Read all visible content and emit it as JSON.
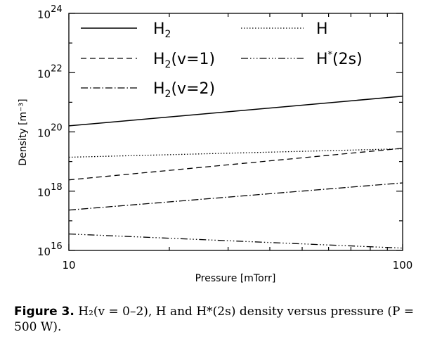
{
  "chart_data": {
    "type": "line",
    "title": "",
    "xlabel": "Pressure [mTorr]",
    "ylabel": "Density [m⁻³]",
    "x_scale": "log",
    "y_scale": "log",
    "xlim": [
      10,
      100
    ],
    "ylim": [
      1e+16,
      1e+24
    ],
    "x_ticks": [
      10,
      100
    ],
    "x_tick_labels": [
      "10",
      "100"
    ],
    "y_ticks": [
      1e+16,
      1e+18,
      1e+20,
      1e+22,
      1e+24
    ],
    "y_tick_labels": [
      {
        "base": "10",
        "exp": "16"
      },
      {
        "base": "10",
        "exp": "18"
      },
      {
        "base": "10",
        "exp": "20"
      },
      {
        "base": "10",
        "exp": "22"
      },
      {
        "base": "10",
        "exp": "24"
      }
    ],
    "grid": false,
    "legend_position": "top",
    "series": [
      {
        "name": "H₂",
        "style": "solid",
        "x": [
          10,
          100
        ],
        "y": [
          1.6e+20,
          1.6e+21
        ]
      },
      {
        "name": "H",
        "style": "dotted",
        "x": [
          10,
          100
        ],
        "y": [
          1.4e+19,
          2.7e+19
        ]
      },
      {
        "name": "H₂(v=1)",
        "style": "dashed",
        "x": [
          10,
          100
        ],
        "y": [
          2.4e+18,
          2.8e+19
        ]
      },
      {
        "name": "H*(2s)",
        "style": "dashdotdot",
        "x": [
          10,
          100
        ],
        "y": [
          3.6e+16,
          1.2e+16
        ]
      },
      {
        "name": "H₂(v=2)",
        "style": "dashdot",
        "x": [
          10,
          100
        ],
        "y": [
          2.3e+17,
          1.9e+18
        ]
      }
    ]
  },
  "legend_labels": {
    "h2": {
      "base": "H",
      "sub": "2",
      "rest": ""
    },
    "h": {
      "base": "H",
      "sup": "",
      "rest": ""
    },
    "h2v1": {
      "base": "H",
      "sub": "2",
      "rest": "(v=1)"
    },
    "h2s": {
      "base": "H",
      "sup": "*",
      "rest": "(2s)"
    },
    "h2v2": {
      "base": "H",
      "sub": "2",
      "rest": "(v=2)"
    }
  },
  "caption": {
    "label": "Figure 3.",
    "text": " H₂(v = 0–2), H and H*(2s) density versus pressure (P = 500 W)."
  }
}
